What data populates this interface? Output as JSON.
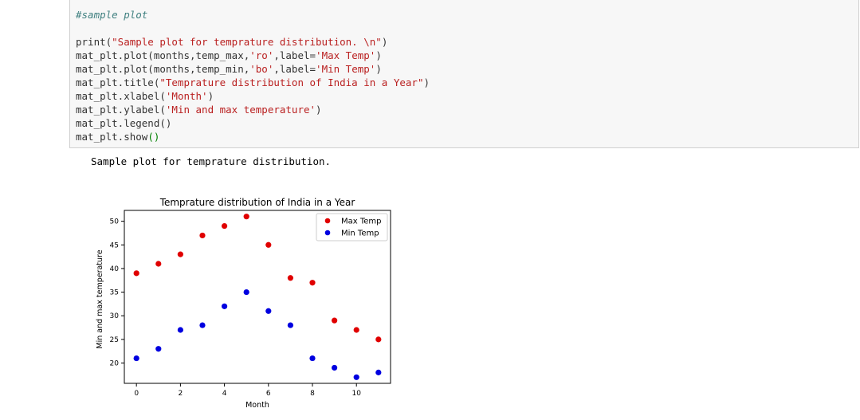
{
  "cell": {
    "comment": "#sample plot",
    "code_lines": [
      [
        {
          "t": "print(",
          "c": ""
        },
        {
          "t": "\"Sample plot for temprature distribution. \\n\"",
          "c": "st"
        },
        {
          "t": ")",
          "c": ""
        }
      ],
      [
        {
          "t": "mat_plt.plot(months,temp_max,",
          "c": ""
        },
        {
          "t": "'ro'",
          "c": "st"
        },
        {
          "t": ",label=",
          "c": ""
        },
        {
          "t": "'Max Temp'",
          "c": "st"
        },
        {
          "t": ")",
          "c": ""
        }
      ],
      [
        {
          "t": "mat_plt.plot(months,temp_min,",
          "c": ""
        },
        {
          "t": "'bo'",
          "c": "st"
        },
        {
          "t": ",label=",
          "c": ""
        },
        {
          "t": "'Min Temp'",
          "c": "st"
        },
        {
          "t": ")",
          "c": ""
        }
      ],
      [
        {
          "t": "mat_plt.title(",
          "c": ""
        },
        {
          "t": "\"Temprature distribution of India in a Year\"",
          "c": "st"
        },
        {
          "t": ")",
          "c": ""
        }
      ],
      [
        {
          "t": "mat_plt.xlabel(",
          "c": ""
        },
        {
          "t": "'Month'",
          "c": "st"
        },
        {
          "t": ")",
          "c": ""
        }
      ],
      [
        {
          "t": "mat_plt.ylabel(",
          "c": ""
        },
        {
          "t": "'Min and max temperature'",
          "c": "st"
        },
        {
          "t": ")",
          "c": ""
        }
      ],
      [
        {
          "t": "mat_plt.legend()",
          "c": ""
        }
      ],
      [
        {
          "t": "mat_plt.show",
          "c": ""
        },
        {
          "t": "()",
          "c": "pn"
        }
      ]
    ]
  },
  "output": {
    "stdout": "Sample plot for temprature distribution."
  },
  "chart_data": {
    "type": "scatter",
    "title": "Temprature distribution of India in a Year",
    "xlabel": "Month",
    "ylabel": "Min and max temperature",
    "xlim": [
      -0.55,
      11.55
    ],
    "ylim": [
      15.7,
      52.3
    ],
    "xticks": [
      0,
      2,
      4,
      6,
      8,
      10
    ],
    "yticks": [
      20,
      25,
      30,
      35,
      40,
      45,
      50
    ],
    "grid": false,
    "legend_position": "top-right",
    "x": [
      0,
      1,
      2,
      3,
      4,
      5,
      6,
      7,
      8,
      9,
      10,
      11
    ],
    "series": [
      {
        "name": "Max Temp",
        "color": "#e00000",
        "values": [
          39,
          41,
          43,
          47,
          49,
          51,
          45,
          38,
          37,
          29,
          27,
          25
        ]
      },
      {
        "name": "Min Temp",
        "color": "#0000e0",
        "values": [
          21,
          23,
          27,
          28,
          32,
          35,
          31,
          28,
          21,
          19,
          17,
          18
        ]
      }
    ]
  }
}
